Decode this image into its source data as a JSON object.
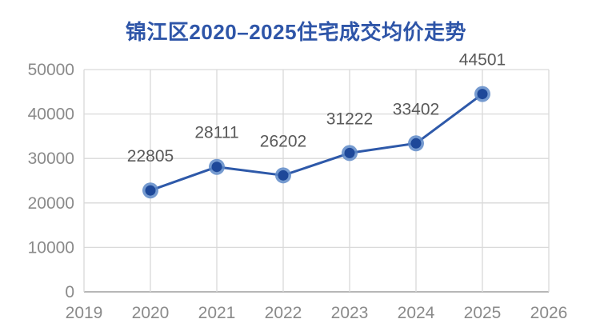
{
  "title": "锦江区2020–2025住宅成交均价走势",
  "chart_data": {
    "type": "line",
    "title": "锦江区2020–2025住宅成交均价走势",
    "x": [
      2020,
      2021,
      2022,
      2023,
      2024,
      2025
    ],
    "values": [
      22805,
      28111,
      26202,
      31222,
      33402,
      44501
    ],
    "data_labels": [
      "22805",
      "28111",
      "26202",
      "31222",
      "33402",
      "44501"
    ],
    "xlabel": "",
    "ylabel": "",
    "xlim": [
      2019,
      2026
    ],
    "ylim": [
      0,
      50000
    ],
    "xticks": [
      2019,
      2020,
      2021,
      2022,
      2023,
      2024,
      2025,
      2026
    ],
    "xtick_labels": [
      "2019",
      "2020",
      "2021",
      "2022",
      "2023",
      "2024",
      "2025",
      "2026"
    ],
    "yticks": [
      0,
      10000,
      20000,
      30000,
      40000,
      50000
    ],
    "ytick_labels": [
      "0",
      "10000",
      "20000",
      "30000",
      "40000",
      "50000"
    ],
    "grid": true,
    "legend": false,
    "show_point_labels": true,
    "colors": {
      "title_text": "#2E55A8",
      "line": "#2E59A9",
      "marker_fill": "#1E4899",
      "marker_halo": "#5E8AC8",
      "gridline": "#D9D9D9",
      "axis_line": "#B7B7B7",
      "tick_text": "#8A8A8A",
      "data_label_text": "#595959",
      "background": "#FFFFFF"
    }
  }
}
